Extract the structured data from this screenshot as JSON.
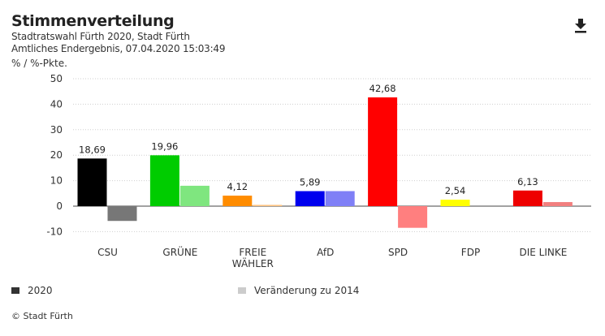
{
  "header": {
    "title": "Stimmenverteilung",
    "subtitle1": "Stadtratswahl Fürth 2020, Stadt Fürth",
    "subtitle2": "Amtliches Endergebnis, 07.04.2020 15:03:49",
    "unit": "% / %-Pkte."
  },
  "download": {
    "icon": "download-icon"
  },
  "chart_data": {
    "type": "bar",
    "title": "Stimmenverteilung",
    "ylabel": "% / %-Pkte.",
    "xlabel": "",
    "ylim": [
      -10,
      50
    ],
    "yticks": [
      50,
      40,
      30,
      20,
      10,
      0,
      -10
    ],
    "grid": true,
    "categories": [
      "CSU",
      "GRÜNE",
      "FREIE WÄHLER",
      "AfD",
      "SPD",
      "FDP",
      "DIE LINKE"
    ],
    "category_lines": [
      [
        "CSU"
      ],
      [
        "GRÜNE"
      ],
      [
        "FREIE",
        "WÄHLER"
      ],
      [
        "AfD"
      ],
      [
        "SPD"
      ],
      [
        "FDP"
      ],
      [
        "DIE LINKE"
      ]
    ],
    "series": [
      {
        "name": "2020",
        "values": [
          18.69,
          19.96,
          4.12,
          5.89,
          42.68,
          2.54,
          6.13
        ],
        "labels": [
          "18,69",
          "19,96",
          "4,12",
          "5,89",
          "42,68",
          "2,54",
          "6,13"
        ],
        "colors": [
          "#000000",
          "#00cc00",
          "#ff8c00",
          "#0000ee",
          "#ff0000",
          "#ffff00",
          "#ee0000"
        ]
      },
      {
        "name": "Veränderung zu 2014",
        "values": [
          -5.8,
          8.0,
          0.5,
          5.9,
          -8.5,
          0.0,
          1.6
        ],
        "colors": [
          "#777777",
          "#7fe67f",
          "#ffc37f",
          "#7f7ff6",
          "#ff7f7f",
          "#ffff7f",
          "#f27f7f"
        ]
      }
    ]
  },
  "legend": {
    "item1": {
      "label": "2020",
      "color": "#333333"
    },
    "item2": {
      "label": "Veränderung zu 2014",
      "color": "#cccccc"
    }
  },
  "footer": {
    "credit": "© Stadt Fürth"
  }
}
